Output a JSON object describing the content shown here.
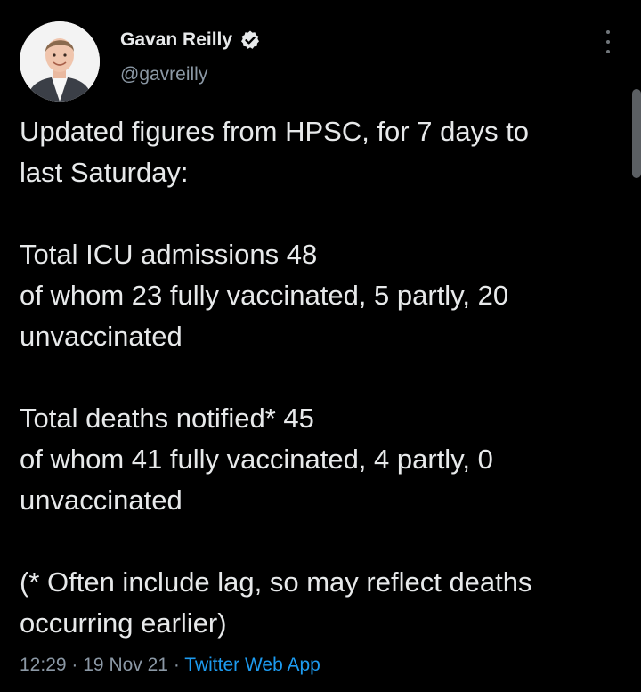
{
  "author": {
    "display_name": "Gavan Reilly",
    "handle": "@gavreilly",
    "verified_icon": "verified-badge-icon",
    "avatar_icon": "profile-photo"
  },
  "menu": {
    "icon": "more-options-icon"
  },
  "tweet": {
    "lines": [
      "Updated figures from HPSC, for 7 days to",
      "last Saturday:",
      "Total ICU admissions 48",
      "of whom 23 fully vaccinated, 5 partly, 20",
      "unvaccinated",
      "Total deaths notified* 45",
      "of whom 41 fully vaccinated, 4 partly, 0",
      "unvaccinated",
      "(* Often include lag, so may reflect deaths",
      "occurring earlier)"
    ]
  },
  "meta": {
    "time": "12:29",
    "separator": "·",
    "date": "19 Nov 21",
    "source": "Twitter Web App"
  },
  "colors": {
    "background": "#000000",
    "text": "#e7e9ea",
    "secondary": "#8b98a5",
    "link": "#1d9bf0"
  }
}
